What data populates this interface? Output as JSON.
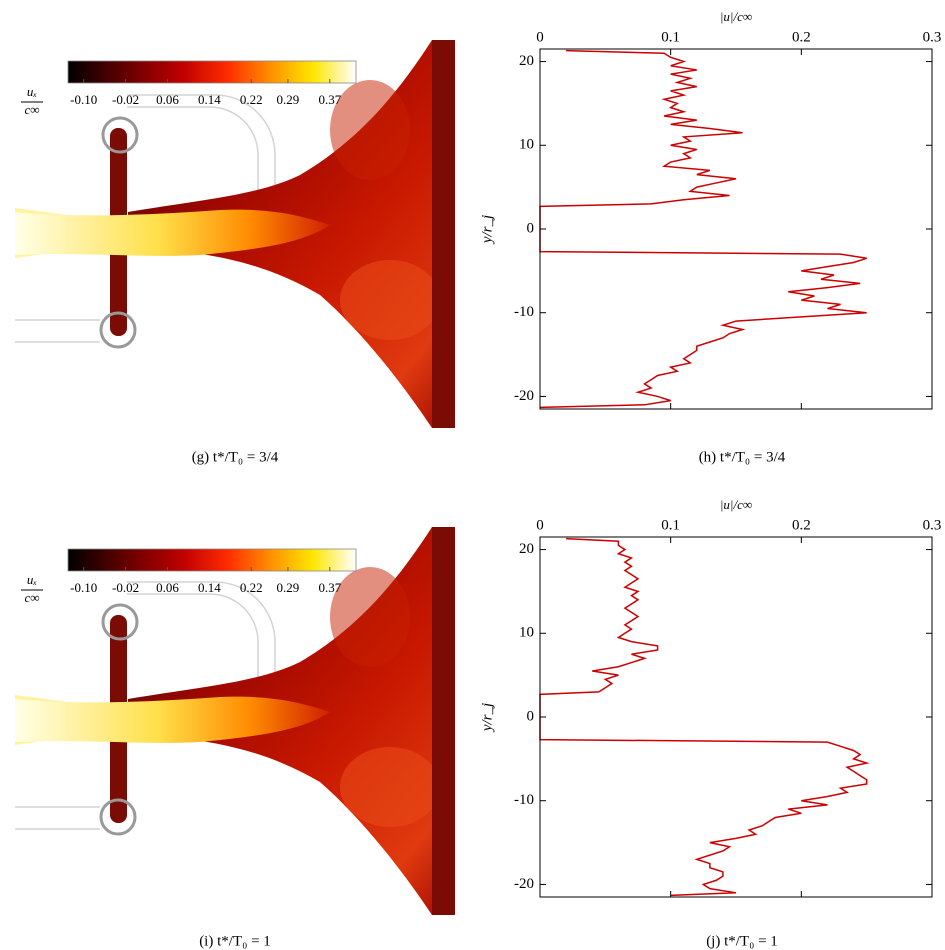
{
  "chart_data": [
    {
      "type": "line",
      "x_label": "|u|/c∞",
      "y_label": "y/r_j",
      "caption": "(h)  t*/T₀ = 3/4",
      "xlim": [
        0,
        0.3
      ],
      "xticks": [
        0,
        0.1,
        0.2,
        0.3
      ],
      "ylim": [
        -21.5,
        21.5
      ],
      "yticks": [
        -20,
        -10,
        0,
        10,
        20
      ],
      "y": [
        21.3,
        21,
        20.5,
        20,
        19.5,
        19,
        18.5,
        18,
        17.5,
        17,
        16.5,
        16,
        15.5,
        15,
        14.5,
        14,
        13.5,
        13,
        12.5,
        12,
        11.5,
        11,
        10.5,
        10,
        9.5,
        9,
        8.5,
        8,
        7.5,
        7,
        6.5,
        6,
        5.5,
        5,
        4.5,
        4,
        3.5,
        3,
        2.7,
        -2.7,
        -3,
        -3.5,
        -4,
        -4.5,
        -5,
        -5.5,
        -6,
        -6.5,
        -7,
        -7.5,
        -8,
        -8.5,
        -9,
        -9.5,
        -10,
        -10.5,
        -11,
        -11.5,
        -12,
        -12.5,
        -13,
        -13.5,
        -14,
        -14.5,
        -15,
        -15.5,
        -16,
        -16.5,
        -17,
        -17.5,
        -18,
        -18.5,
        -19,
        -19.5,
        -20,
        -20.5,
        -21,
        -21.3
      ],
      "series": [
        {
          "color": "#cc0000",
          "values": [
            0.02,
            0.095,
            0.1,
            0.11,
            0.1,
            0.12,
            0.1,
            0.115,
            0.105,
            0.12,
            0.1,
            0.11,
            0.095,
            0.105,
            0.1,
            0.11,
            0.095,
            0.12,
            0.1,
            0.13,
            0.155,
            0.11,
            0.115,
            0.1,
            0.12,
            0.11,
            0.115,
            0.1,
            0.095,
            0.13,
            0.12,
            0.15,
            0.135,
            0.12,
            0.115,
            0.145,
            0.11,
            0.085,
            0,
            0,
            0.23,
            0.25,
            0.24,
            0.22,
            0.2,
            0.225,
            0.215,
            0.245,
            0.22,
            0.19,
            0.21,
            0.2,
            0.23,
            0.22,
            0.25,
            0.2,
            0.15,
            0.14,
            0.155,
            0.145,
            0.14,
            0.13,
            0.12,
            0.12,
            0.115,
            0.11,
            0.115,
            0.1,
            0.105,
            0.09,
            0.085,
            0.08,
            0.085,
            0.075,
            0.09,
            0.1,
            0.08,
            0
          ]
        }
      ]
    },
    {
      "type": "line",
      "x_label": "|u|/c∞",
      "y_label": "y/r_j",
      "caption": "(j)  t*/T₀ = 1",
      "xlim": [
        0,
        0.3
      ],
      "xticks": [
        0,
        0.1,
        0.2,
        0.3
      ],
      "ylim": [
        -21.5,
        21.5
      ],
      "yticks": [
        -20,
        -10,
        0,
        10,
        20
      ],
      "y": [
        21.3,
        21,
        20.5,
        20,
        19.5,
        19,
        18.5,
        18,
        17.5,
        17,
        16.5,
        16,
        15.5,
        15,
        14.5,
        14,
        13.5,
        13,
        12.5,
        12,
        11.5,
        11,
        10.5,
        10,
        9.5,
        9,
        8.5,
        8,
        7.5,
        7,
        6.5,
        6,
        5.5,
        5,
        4.5,
        4,
        3.5,
        3,
        2.7,
        -2.7,
        -3,
        -3.5,
        -4,
        -4.5,
        -5,
        -5.5,
        -6,
        -6.5,
        -7,
        -7.5,
        -8,
        -8.5,
        -9,
        -9.5,
        -10,
        -10.5,
        -11,
        -11.5,
        -12,
        -12.5,
        -13,
        -13.5,
        -14,
        -14.5,
        -15,
        -15.5,
        -16,
        -16.5,
        -17,
        -17.5,
        -18,
        -18.5,
        -19,
        -19.5,
        -20,
        -20.5,
        -21,
        -21.3
      ],
      "series": [
        {
          "color": "#cc0000",
          "values": [
            0.02,
            0.06,
            0.06,
            0.065,
            0.06,
            0.07,
            0.065,
            0.07,
            0.065,
            0.07,
            0.075,
            0.07,
            0.065,
            0.075,
            0.07,
            0.075,
            0.07,
            0.065,
            0.07,
            0.075,
            0.07,
            0.065,
            0.07,
            0.065,
            0.06,
            0.07,
            0.09,
            0.09,
            0.07,
            0.08,
            0.07,
            0.06,
            0.04,
            0.06,
            0.05,
            0.055,
            0.05,
            0.045,
            0,
            0,
            0.22,
            0.23,
            0.24,
            0.245,
            0.24,
            0.25,
            0.235,
            0.24,
            0.245,
            0.25,
            0.25,
            0.23,
            0.235,
            0.22,
            0.2,
            0.22,
            0.19,
            0.2,
            0.18,
            0.175,
            0.17,
            0.16,
            0.165,
            0.15,
            0.13,
            0.145,
            0.14,
            0.13,
            0.12,
            0.13,
            0.13,
            0.14,
            0.14,
            0.135,
            0.125,
            0.13,
            0.15,
            0.1
          ]
        }
      ]
    }
  ],
  "contour_panels": [
    {
      "caption": "(g)  t*/T₀ = 3/4",
      "colorbar_label": {
        "numerator": "uₓ",
        "denominator": "c∞"
      },
      "clim": [
        -0.13,
        0.42
      ],
      "colorbar_ticks": [
        {
          "value": -0.1,
          "label": "-0.10"
        },
        {
          "value": -0.02,
          "label": "-0.02"
        },
        0.06,
        0.14,
        0.22,
        0.29,
        0.37
      ]
    },
    {
      "caption": "(i)  t*/T₀ = 1",
      "colorbar_label": {
        "numerator": "uₓ",
        "denominator": "c∞"
      },
      "clim": [
        -0.13,
        0.42
      ],
      "colorbar_ticks": [
        {
          "value": -0.1,
          "label": "-0.10"
        },
        {
          "value": -0.02,
          "label": "-0.02"
        },
        0.06,
        0.14,
        0.22,
        0.29,
        0.37
      ]
    }
  ]
}
